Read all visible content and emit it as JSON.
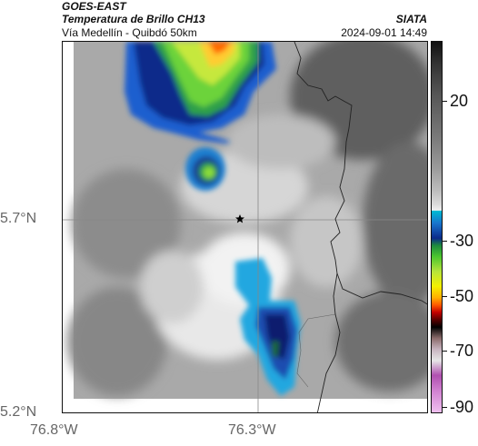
{
  "header": {
    "title": "GOES-EAST",
    "subtitle": "Temperatura de Brillo CH13",
    "region": "Vía Medellín - Quibdó 50km",
    "credit": "SIATA",
    "timestamp": "2024-09-01 14:49"
  },
  "axes": {
    "lat_ticks": [
      "5.7°N",
      "5.2°N"
    ],
    "lon_ticks": [
      "76.8°W",
      "76.3°W"
    ]
  },
  "colorbar": {
    "ticks": [
      "20",
      "-30",
      "-50",
      "-70",
      "-90"
    ],
    "colors": [
      "#111111",
      "#bcbcbc",
      "#00bcd4",
      "#0b2a8a",
      "#4cc62e",
      "#f4f000",
      "#ff5a00",
      "#5a0000",
      "#e6e6e6",
      "#b050b0"
    ]
  },
  "marker": {
    "icon": "star-icon"
  }
}
